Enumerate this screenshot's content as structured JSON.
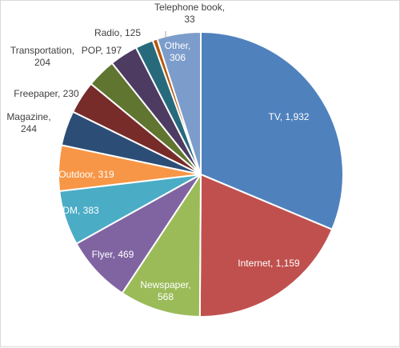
{
  "chart_data": {
    "type": "pie",
    "title": "",
    "categories": [
      "TV",
      "Internet",
      "Newspaper",
      "Flyer",
      "DM",
      "Outdoor",
      "Magazine",
      "Freepaper",
      "Transportation",
      "POP",
      "Radio",
      "Telephone book",
      "Other"
    ],
    "values": [
      1932,
      1159,
      568,
      469,
      383,
      319,
      244,
      230,
      204,
      197,
      125,
      33,
      306
    ],
    "colors": [
      "#4f81bd",
      "#c0504d",
      "#9bbb59",
      "#8064a2",
      "#4bacc6",
      "#f79646",
      "#2c4d75",
      "#772c2a",
      "#5f7530",
      "#4d3b62",
      "#276a7c",
      "#b65708",
      "#7c9dcb"
    ],
    "label_text": [
      [
        "TV, 1,932"
      ],
      [
        "Internet, 1,159"
      ],
      [
        "Newspaper,",
        "568"
      ],
      [
        "Flyer, 469"
      ],
      [
        "DM, 383"
      ],
      [
        "Outdoor, 319"
      ],
      [
        "Magazine,",
        "244"
      ],
      [
        "Freepaper, 230"
      ],
      [
        "Transportation,",
        "204"
      ],
      [
        "POP, 197"
      ],
      [
        "Radio, 125"
      ],
      [
        "Telephone book,",
        "33"
      ],
      [
        "Other,",
        "306"
      ]
    ],
    "label_inside": [
      true,
      true,
      true,
      true,
      true,
      true,
      false,
      false,
      false,
      false,
      false,
      false,
      true
    ],
    "legend": "none"
  }
}
